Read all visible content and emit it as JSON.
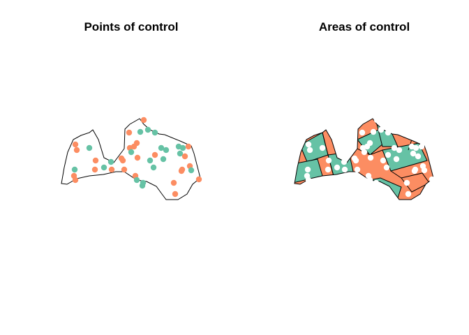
{
  "panels": {
    "left_title": "Points of control",
    "right_title": "Areas of control"
  },
  "colors": {
    "team_a": "#fc8d62",
    "team_b": "#66c2a5",
    "outline": "#000000",
    "point_on_area": "#ffffff"
  }
}
